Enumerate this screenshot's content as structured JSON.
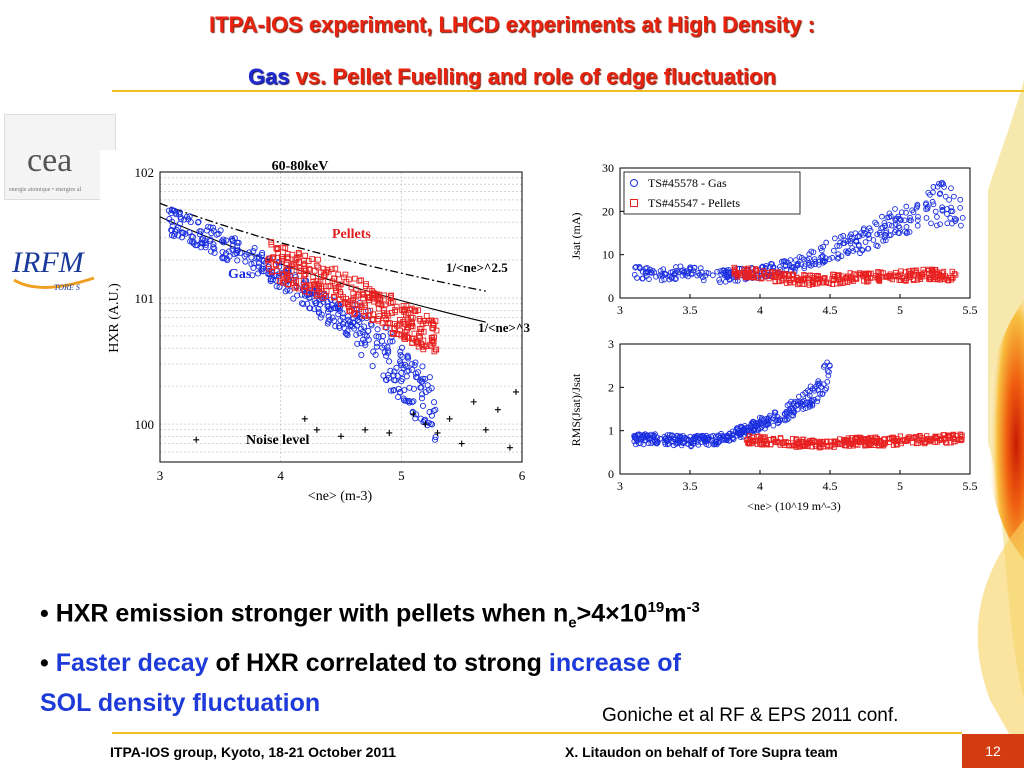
{
  "slide": {
    "title_line1": "ITPA-IOS experiment, LHCD experiments at High Density :",
    "title_line2_a": "Gas",
    "title_line2_b": "vs. Pellet Fuelling and role of edge fluctuation",
    "page_number": "12",
    "footer_left": "ITPA-IOS group, Kyoto, 18-21 October 2011",
    "footer_right": "X. Litaudon on behalf of Tore Supra team",
    "citation": "Goniche et al RF & EPS 2011 conf.",
    "logos": {
      "cea_text": "cea",
      "cea_tagline": "energie atomique • energies al",
      "irfm_text": "IRFM",
      "tore_text": "TORE S"
    },
    "colors": {
      "title_red": "#e8230f",
      "title_blue": "#1e2ad0",
      "gold": "#f0c020",
      "gas": "#1a2ee0",
      "pellet": "#e82020",
      "page_box": "#d33b10"
    }
  },
  "bullets": {
    "b1_prefix": "• ",
    "b1_text": "HXR emission stronger with pellets when n",
    "b1_sub": "e",
    "b1_mid": ">4×10",
    "b1_sup": "19",
    "b1_unit": "m",
    "b1_sup2": "-3",
    "b2_prefix": "• ",
    "b2_hl1": "Faster decay",
    "b2_text": " of HXR correlated to strong ",
    "b2_hl2": "increase of",
    "b2_hl3": "SOL density fluctuation"
  },
  "chart_data": [
    {
      "type": "scatter",
      "title": "60-80keV",
      "xlabel": "<ne> (m-3)",
      "ylabel": "HXR (A.U.)",
      "xlim": [
        3,
        6
      ],
      "ylim": [
        0.5,
        100
      ],
      "yscale": "log",
      "xticks": [
        "3",
        "4",
        "5",
        "6"
      ],
      "yticks": [
        "10^0",
        "10^1",
        "10^2"
      ],
      "grid": true,
      "annotations": [
        "Pellets",
        "Gas",
        "1/<ne>^2.5",
        "1/<ne>^3",
        "Noise level"
      ],
      "series": [
        {
          "name": "Gas",
          "points": [
            [
              3.08,
              40
            ],
            [
              3.15,
              38
            ],
            [
              3.22,
              36
            ],
            [
              3.3,
              33
            ],
            [
              3.4,
              30
            ],
            [
              3.5,
              27
            ],
            [
              3.6,
              24
            ],
            [
              3.7,
              21
            ],
            [
              3.8,
              19
            ],
            [
              3.9,
              17
            ],
            [
              4.0,
              15
            ],
            [
              4.1,
              13
            ],
            [
              4.2,
              11
            ],
            [
              4.3,
              9.5
            ],
            [
              4.4,
              8
            ],
            [
              4.5,
              7
            ],
            [
              4.6,
              5.8
            ],
            [
              4.7,
              5
            ],
            [
              4.8,
              4
            ],
            [
              4.9,
              3.2
            ],
            [
              5.0,
              2.5
            ],
            [
              5.1,
              2
            ],
            [
              5.2,
              1.7
            ],
            [
              5.3,
              1.2
            ]
          ]
        },
        {
          "name": "Pellets",
          "points": [
            [
              3.9,
              20
            ],
            [
              4.0,
              19
            ],
            [
              4.1,
              17
            ],
            [
              4.2,
              16
            ],
            [
              4.3,
              14.5
            ],
            [
              4.4,
              13
            ],
            [
              4.5,
              12
            ],
            [
              4.6,
              10.5
            ],
            [
              4.7,
              9.5
            ],
            [
              4.8,
              8.5
            ],
            [
              4.9,
              7.5
            ],
            [
              5.0,
              6.8
            ],
            [
              5.1,
              6
            ],
            [
              5.2,
              5.3
            ],
            [
              5.3,
              4.8
            ]
          ]
        },
        {
          "name": "Noise",
          "points": [
            [
              3.3,
              0.75
            ],
            [
              4.2,
              1.1
            ],
            [
              4.3,
              0.9
            ],
            [
              4.5,
              0.8
            ],
            [
              4.7,
              0.9
            ],
            [
              4.9,
              0.85
            ],
            [
              5.1,
              1.2
            ],
            [
              5.2,
              1.0
            ],
            [
              5.3,
              0.85
            ],
            [
              5.4,
              1.1
            ],
            [
              5.5,
              0.7
            ],
            [
              5.6,
              1.5
            ],
            [
              5.7,
              0.9
            ],
            [
              5.8,
              1.3
            ],
            [
              5.9,
              0.65
            ],
            [
              5.95,
              1.8
            ]
          ]
        }
      ],
      "fit_lines": [
        {
          "name": "1/<ne>^2.5",
          "style": "dash-dot"
        },
        {
          "name": "1/<ne>^3",
          "style": "solid"
        }
      ]
    },
    {
      "type": "scatter",
      "xlim": [
        3,
        5.5
      ],
      "ylim": [
        0,
        30
      ],
      "ylabel": "Jsat (mA)",
      "xticks": [
        "3",
        "3.5",
        "4",
        "4.5",
        "5",
        "5.5"
      ],
      "yticks": [
        "0",
        "10",
        "20",
        "30"
      ],
      "legend": "top-left",
      "series": [
        {
          "name": "TS#45578 - Gas",
          "points": [
            [
              3.1,
              6
            ],
            [
              3.3,
              5.5
            ],
            [
              3.5,
              6
            ],
            [
              3.7,
              5
            ],
            [
              3.9,
              5.5
            ],
            [
              4.1,
              6.5
            ],
            [
              4.3,
              8
            ],
            [
              4.5,
              11
            ],
            [
              4.7,
              13
            ],
            [
              4.9,
              16
            ],
            [
              5.1,
              19
            ],
            [
              5.3,
              22
            ],
            [
              5.45,
              20
            ]
          ]
        },
        {
          "name": "TS#45547 -  Pellets",
          "points": [
            [
              3.8,
              6
            ],
            [
              4.0,
              5.5
            ],
            [
              4.2,
              4.5
            ],
            [
              4.4,
              4
            ],
            [
              4.6,
              4.5
            ],
            [
              4.8,
              5
            ],
            [
              5.0,
              5
            ],
            [
              5.2,
              5.5
            ],
            [
              5.4,
              5
            ]
          ]
        }
      ]
    },
    {
      "type": "scatter",
      "xlim": [
        3,
        5.5
      ],
      "ylim": [
        0,
        3
      ],
      "ylabel": "RMS(Jsat)/Jsat",
      "xlabel": "<ne> (10^19 m^-3)",
      "xticks": [
        "3",
        "3.5",
        "4",
        "4.5",
        "5",
        "5.5"
      ],
      "yticks": [
        "0",
        "1",
        "2",
        "3"
      ],
      "series": [
        {
          "name": "TS#45578 - Gas",
          "points": [
            [
              3.1,
              0.8
            ],
            [
              3.3,
              0.8
            ],
            [
              3.5,
              0.75
            ],
            [
              3.7,
              0.8
            ],
            [
              3.9,
              1.0
            ],
            [
              4.1,
              1.3
            ],
            [
              4.3,
              1.6
            ],
            [
              4.4,
              1.9
            ],
            [
              4.5,
              2.4
            ]
          ]
        },
        {
          "name": "TS#45547 -  Pellets",
          "points": [
            [
              3.9,
              0.8
            ],
            [
              4.1,
              0.75
            ],
            [
              4.3,
              0.7
            ],
            [
              4.5,
              0.7
            ],
            [
              4.7,
              0.75
            ],
            [
              4.9,
              0.75
            ],
            [
              5.1,
              0.8
            ],
            [
              5.3,
              0.8
            ],
            [
              5.45,
              0.85
            ]
          ]
        }
      ]
    }
  ]
}
